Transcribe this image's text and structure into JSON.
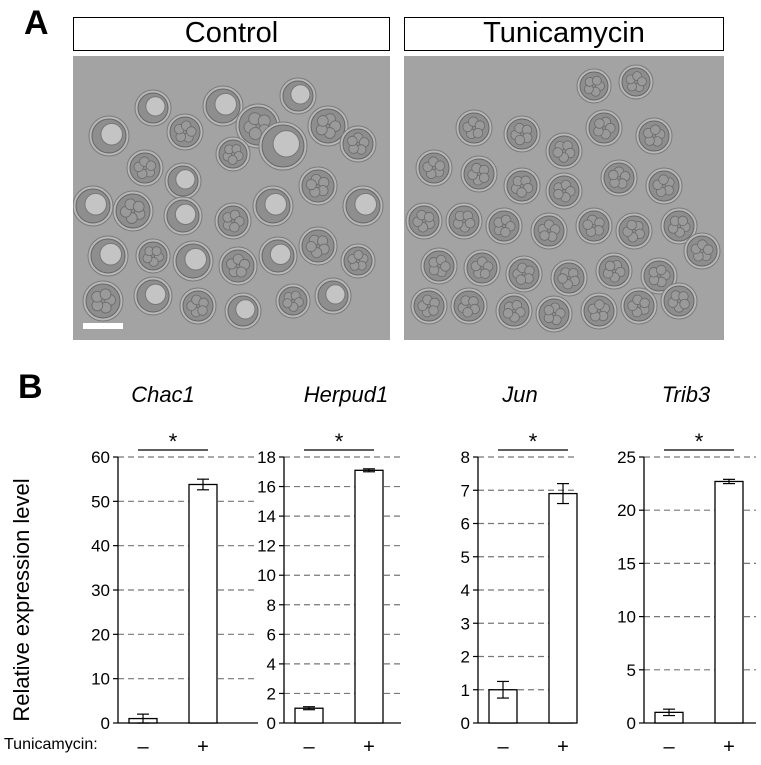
{
  "panel_a": {
    "letter": "A",
    "left_title": "Control",
    "right_title": "Tunicamycin"
  },
  "panel_b": {
    "letter": "B",
    "ylabel": "Relative expression level",
    "treatment_label": "Tunicamycin:",
    "treatment_ticks": [
      "–",
      "+"
    ],
    "significance_mark": "*"
  },
  "chart_data": [
    {
      "type": "bar",
      "title": "Chac1",
      "categories": [
        "–",
        "+"
      ],
      "values": [
        1.0,
        53.8
      ],
      "errors": [
        1.0,
        1.2
      ],
      "ylim": [
        0,
        60
      ],
      "yticks": [
        0,
        10,
        20,
        30,
        40,
        50,
        60
      ],
      "significance": "*",
      "grid": true
    },
    {
      "type": "bar",
      "title": "Herpud1",
      "categories": [
        "–",
        "+"
      ],
      "values": [
        1.0,
        17.1
      ],
      "errors": [
        0.1,
        0.1
      ],
      "ylim": [
        0,
        18
      ],
      "yticks": [
        0,
        2,
        4,
        6,
        8,
        10,
        12,
        14,
        16,
        18
      ],
      "significance": "*",
      "grid": true
    },
    {
      "type": "bar",
      "title": "Jun",
      "categories": [
        "–",
        "+"
      ],
      "values": [
        1.0,
        6.9
      ],
      "errors": [
        0.25,
        0.3
      ],
      "ylim": [
        0,
        8
      ],
      "yticks": [
        0,
        1,
        2,
        3,
        4,
        5,
        6,
        7,
        8
      ],
      "significance": "*",
      "grid": true
    },
    {
      "type": "bar",
      "title": "Trib3",
      "categories": [
        "–",
        "+"
      ],
      "values": [
        1.0,
        22.7
      ],
      "errors": [
        0.3,
        0.2
      ],
      "ylim": [
        0,
        25
      ],
      "yticks": [
        0,
        5,
        10,
        15,
        20,
        25
      ],
      "significance": "*",
      "grid": true
    }
  ]
}
